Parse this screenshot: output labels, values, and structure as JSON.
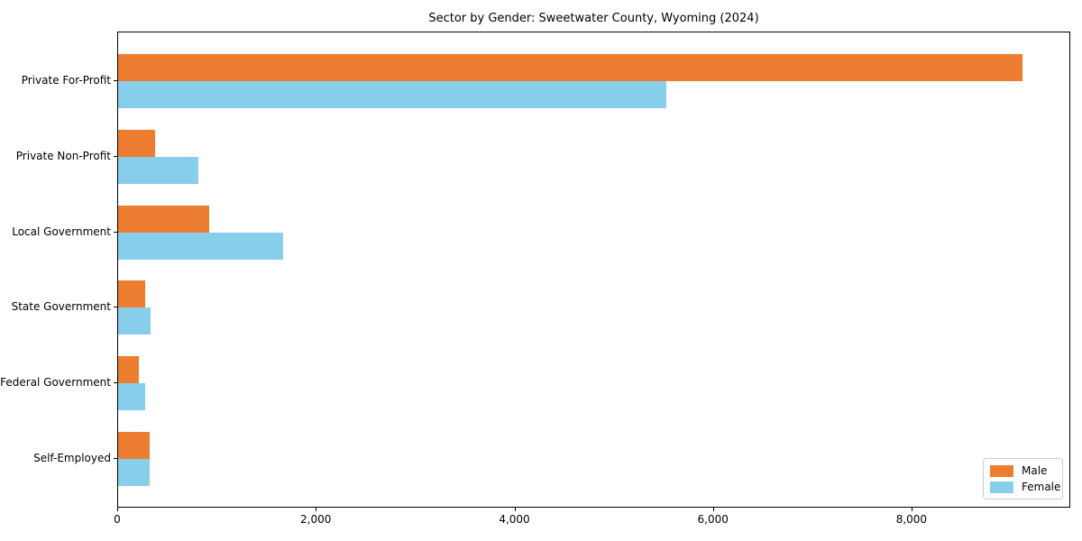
{
  "chart_data": {
    "type": "bar",
    "orientation": "horizontal",
    "title": "Sector by Gender: Sweetwater County, Wyoming (2024)",
    "categories": [
      "Private For-Profit",
      "Private Non-Profit",
      "Local Government",
      "State Government",
      "Federal Government",
      "Self-Employed"
    ],
    "series": [
      {
        "name": "Male",
        "color": "#ed7d31",
        "values": [
          9110,
          370,
          915,
          270,
          205,
          315
        ]
      },
      {
        "name": "Female",
        "color": "#87ceeb",
        "values": [
          5525,
          805,
          1665,
          330,
          270,
          320
        ]
      }
    ],
    "xlabel": "",
    "ylabel": "",
    "xlim": [
      0,
      9590
    ],
    "xticks": [
      0,
      2000,
      4000,
      6000,
      8000
    ],
    "xtick_labels": [
      "0",
      "2,000",
      "4,000",
      "6,000",
      "8,000"
    ],
    "legend_position": "lower right",
    "grid": false,
    "background_color": "#ffffff",
    "text_color": "#000000"
  }
}
